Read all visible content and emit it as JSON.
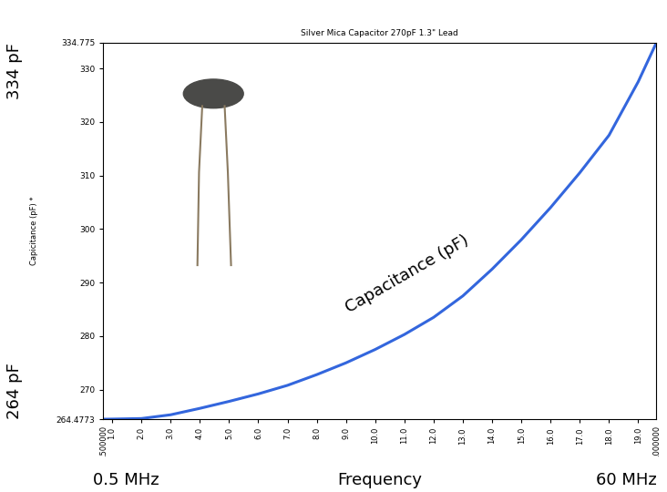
{
  "chart_data": {
    "type": "line",
    "title": "Silver Mica Capacitor 270pF 1.3\" Lead",
    "x_label": "Frequency",
    "y_label": "Capicitance (pF) *",
    "curve_label": "Capacitance (pF)",
    "left_annotations": [
      "334 pF",
      "264 pF"
    ],
    "bottom_annotations": [
      "0.5 MHz",
      "60 MHz"
    ],
    "x_end_labels": [
      ".500000",
      ".000000"
    ],
    "x": [
      0.7,
      1.0,
      2.0,
      3.0,
      4.0,
      5.0,
      6.0,
      7.0,
      8.0,
      9.0,
      10.0,
      11.0,
      12.0,
      13.0,
      14.0,
      15.0,
      16.0,
      17.0,
      18.0,
      19.0,
      19.62
    ],
    "values": [
      264.4773,
      264.5,
      264.6,
      265.3,
      266.5,
      267.8,
      269.2,
      270.8,
      272.8,
      275.0,
      277.5,
      280.3,
      283.5,
      287.5,
      292.5,
      298.0,
      304.0,
      310.5,
      317.5,
      327.5,
      334.775
    ],
    "color": "#3366dd",
    "xlim": [
      0.7,
      19.62
    ],
    "xticks": [
      1.0,
      2.0,
      3.0,
      4.0,
      5.0,
      6.0,
      7.0,
      8.0,
      9.0,
      10.0,
      11.0,
      12.0,
      13.0,
      14.0,
      15.0,
      16.0,
      17.0,
      18.0,
      19.0
    ],
    "ylim": [
      264.4773,
      334.775
    ],
    "yticks": [
      264.4773,
      270,
      280,
      290,
      300,
      310,
      320,
      330,
      334.775
    ],
    "grid": false
  }
}
